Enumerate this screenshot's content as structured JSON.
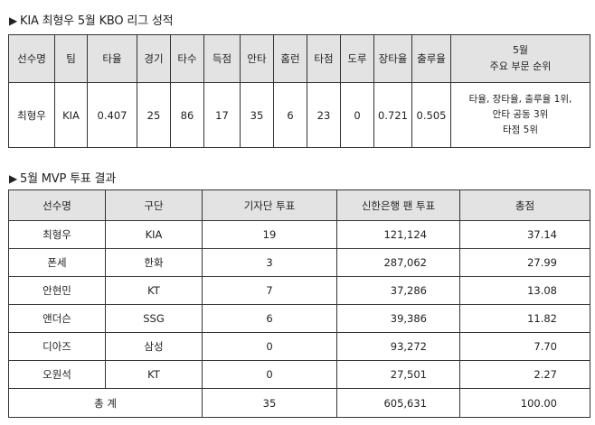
{
  "section1": {
    "marker": "▶",
    "title": "KIA 최형우 5월 KBO 리그 성적",
    "headers": [
      "선수명",
      "팀",
      "타율",
      "경기",
      "타수",
      "득점",
      "안타",
      "홈런",
      "타점",
      "도루",
      "장타율",
      "출루율"
    ],
    "header_last_line1": "5월",
    "header_last_line2": "주요 부문 순위",
    "row": [
      "최형우",
      "KIA",
      "0.407",
      "25",
      "86",
      "17",
      "35",
      "6",
      "23",
      "0",
      "0.721",
      "0.505"
    ],
    "rank_line1": "타율, 장타율, 출루율 1위,",
    "rank_line2": "안타 공동 3위",
    "rank_line3": "타점 5위"
  },
  "section2": {
    "marker": "▶",
    "title": "5월 MVP 투표 결과",
    "headers": [
      "선수명",
      "구단",
      "기자단 투표",
      "신한은행 팬 투표",
      "총점"
    ],
    "rows": [
      [
        "최형우",
        "KIA",
        "19",
        "121,124",
        "37.14"
      ],
      [
        "폰세",
        "한화",
        "3",
        "287,062",
        "27.99"
      ],
      [
        "안현민",
        "KT",
        "7",
        "37,286",
        "13.08"
      ],
      [
        "앤더슨",
        "SSG",
        "6",
        "39,386",
        "11.82"
      ],
      [
        "디아즈",
        "삼성",
        "0",
        "93,272",
        "7.70"
      ],
      [
        "오원석",
        "KT",
        "0",
        "27,501",
        "2.27"
      ]
    ],
    "total": {
      "label": "총 계",
      "press": "35",
      "fan": "605,631",
      "score": "100.00"
    }
  }
}
